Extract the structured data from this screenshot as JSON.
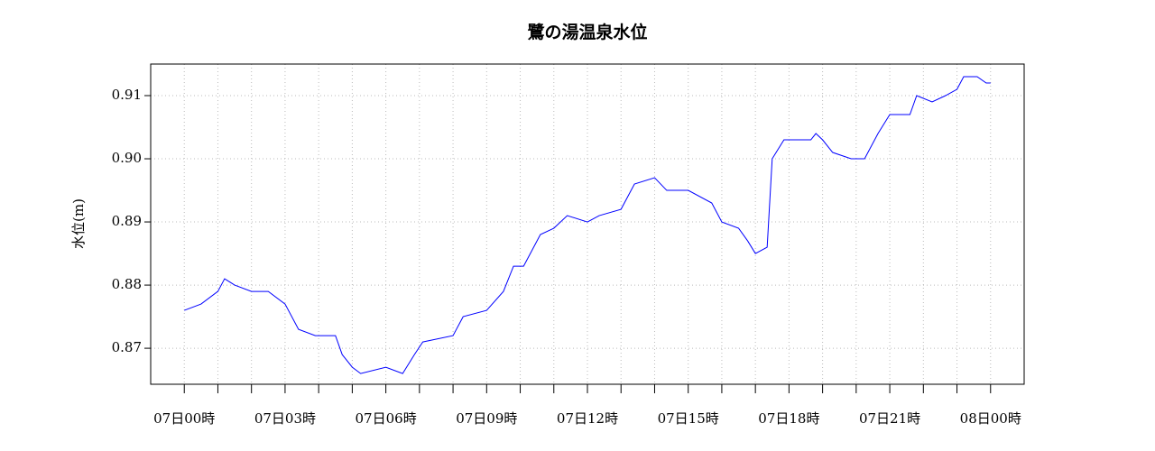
{
  "chart_data": {
    "type": "line",
    "title": "鷺の湯温泉水位",
    "ylabel": "水位(m)",
    "xlim": [
      -1,
      25
    ],
    "ylim": [
      0.8643,
      0.915
    ],
    "xticks": [
      {
        "value": 0,
        "label": "07日00時"
      },
      {
        "value": 3,
        "label": "07日03時"
      },
      {
        "value": 6,
        "label": "07日06時"
      },
      {
        "value": 9,
        "label": "07日09時"
      },
      {
        "value": 12,
        "label": "07日12時"
      },
      {
        "value": 15,
        "label": "07日15時"
      },
      {
        "value": 18,
        "label": "07日18時"
      },
      {
        "value": 21,
        "label": "07日21時"
      },
      {
        "value": 24,
        "label": "08日00時"
      }
    ],
    "xminorticks": [
      1,
      2,
      4,
      5,
      7,
      8,
      10,
      11,
      13,
      14,
      16,
      17,
      19,
      20,
      22,
      23
    ],
    "yticks": [
      0.87,
      0.88,
      0.89,
      {
        "value": 0.9,
        "label": "0.90"
      },
      0.91
    ],
    "grid": true,
    "series": [
      {
        "name": "水位",
        "color": "#0000ff",
        "x": [
          0,
          0.5,
          1.0,
          1.2,
          1.5,
          2.0,
          2.5,
          3.0,
          3.4,
          3.9,
          4.5,
          4.7,
          5.0,
          5.25,
          6.0,
          6.5,
          6.85,
          7.1,
          8.0,
          8.3,
          9.0,
          9.5,
          9.8,
          10.1,
          10.6,
          11.0,
          11.4,
          12.0,
          12.35,
          13.0,
          13.4,
          14.0,
          14.36,
          15.0,
          15.7,
          16.0,
          16.5,
          16.77,
          17.0,
          17.35,
          17.5,
          17.85,
          18.65,
          18.8,
          19.0,
          19.3,
          19.85,
          20.25,
          20.65,
          21.0,
          21.6,
          21.8,
          22.26,
          22.66,
          23.0,
          23.2,
          23.6,
          23.87,
          24.0
        ],
        "values": [
          0.876,
          0.877,
          0.879,
          0.881,
          0.88,
          0.879,
          0.879,
          0.877,
          0.873,
          0.872,
          0.872,
          0.869,
          0.867,
          0.866,
          0.867,
          0.866,
          0.869,
          0.871,
          0.872,
          0.875,
          0.876,
          0.879,
          0.883,
          0.883,
          0.888,
          0.889,
          0.891,
          0.89,
          0.891,
          0.892,
          0.896,
          0.897,
          0.895,
          0.895,
          0.893,
          0.89,
          0.889,
          0.887,
          0.885,
          0.886,
          0.9,
          0.903,
          0.903,
          0.904,
          0.903,
          0.901,
          0.9,
          0.9,
          0.904,
          0.907,
          0.907,
          0.91,
          0.909,
          0.91,
          0.911,
          0.913,
          0.913,
          0.912,
          0.912
        ]
      }
    ]
  }
}
